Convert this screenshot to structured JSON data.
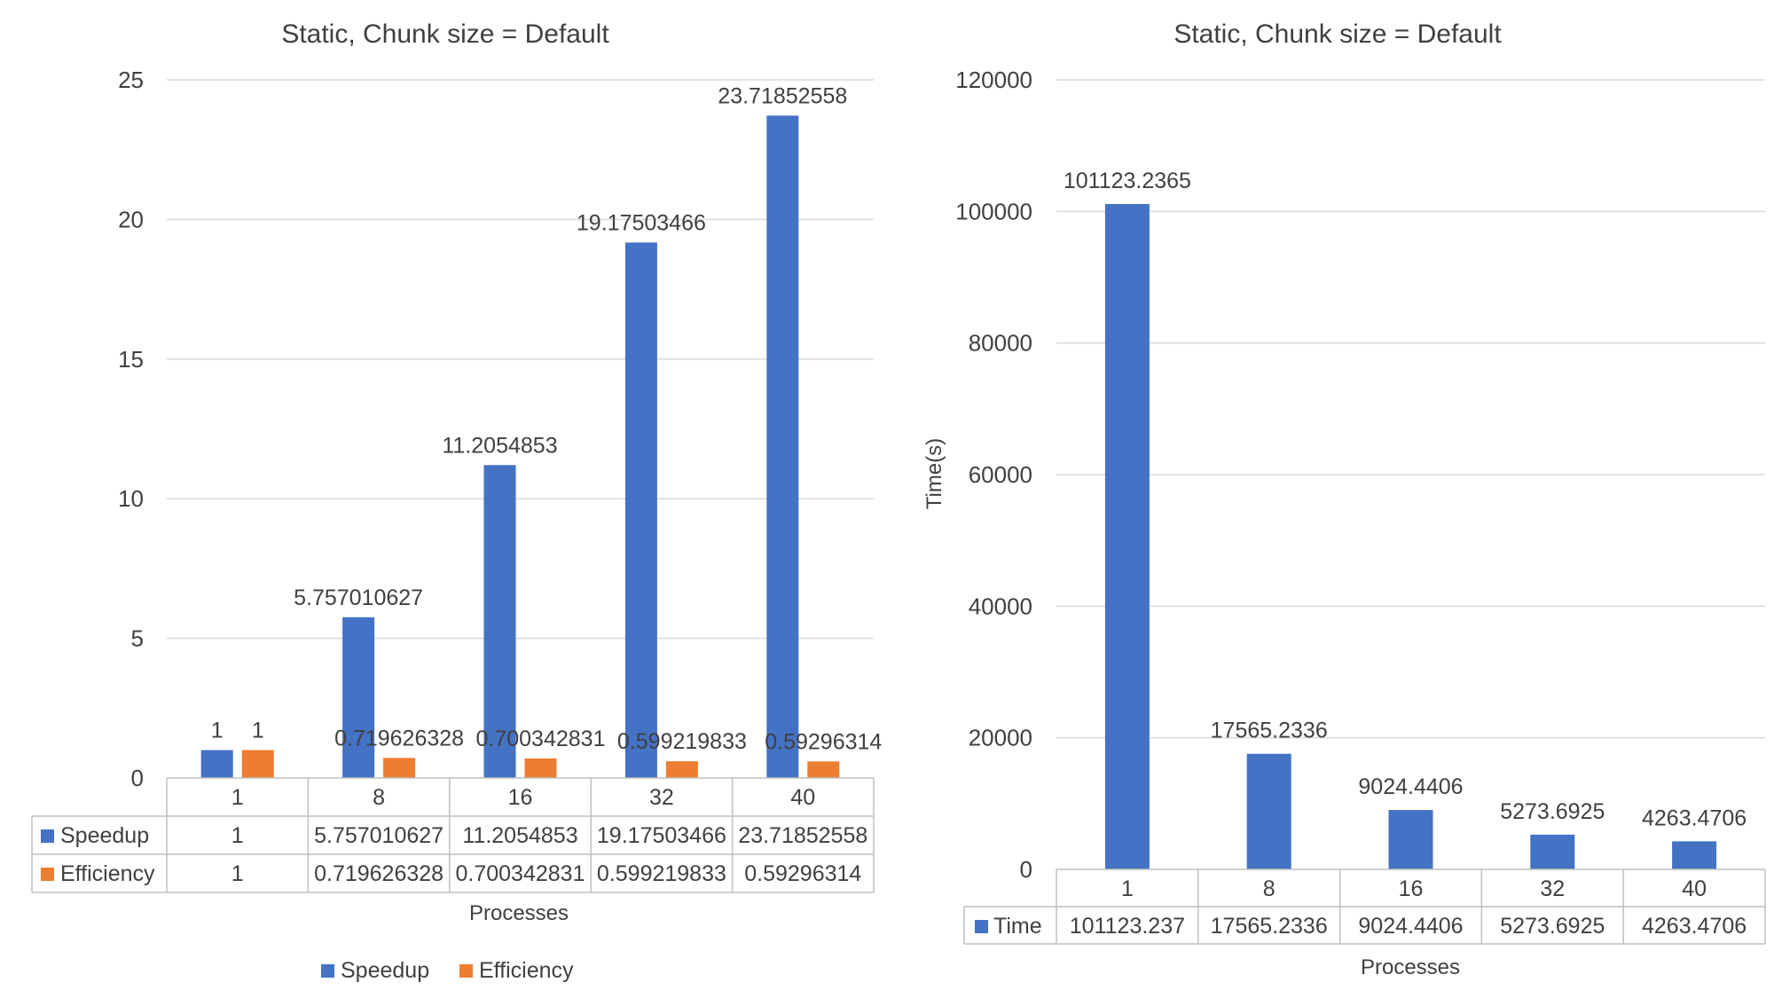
{
  "chart_data": [
    {
      "type": "bar",
      "title": "Static, Chunk size = Default",
      "xlabel": "Processes",
      "ylabel": "",
      "ylim": [
        0,
        25
      ],
      "yticks": [
        "0",
        "5",
        "10",
        "15",
        "20",
        "25"
      ],
      "categories": [
        "1",
        "8",
        "16",
        "32",
        "40"
      ],
      "grid": true,
      "legend_position": "bottom",
      "data_table": true,
      "series": [
        {
          "name": "Speedup",
          "color": "#4472C4",
          "values": [
            1,
            5.757010627,
            11.2054853,
            19.17503466,
            23.71852558
          ],
          "labels": [
            "1",
            "5.757010627",
            "11.2054853",
            "19.17503466",
            "23.71852558"
          ]
        },
        {
          "name": "Efficiency",
          "color": "#ED7D31",
          "values": [
            1,
            0.719626328,
            0.700342831,
            0.599219833,
            0.59296314
          ],
          "labels": [
            "1",
            "0.719626328",
            "0.700342831",
            "0.599219833",
            "0.59296314"
          ]
        }
      ]
    },
    {
      "type": "bar",
      "title": "Static, Chunk size = Default",
      "xlabel": "Processes",
      "ylabel": "Time(s)",
      "ylim": [
        0,
        120000
      ],
      "yticks": [
        "0",
        "20000",
        "40000",
        "60000",
        "80000",
        "100000",
        "120000"
      ],
      "categories": [
        "1",
        "8",
        "16",
        "32",
        "40"
      ],
      "grid": true,
      "data_table": true,
      "series": [
        {
          "name": "Time",
          "color": "#4472C4",
          "values": [
            101123.2365,
            17565.2336,
            9024.4406,
            5273.6925,
            4263.4706
          ],
          "labels": [
            "101123.2365",
            "17565.2336",
            "9024.4406",
            "5273.6925",
            "4263.4706"
          ],
          "table_values": [
            "101123.237",
            "17565.2336",
            "9024.4406",
            "5273.6925",
            "4263.4706"
          ]
        }
      ]
    }
  ]
}
